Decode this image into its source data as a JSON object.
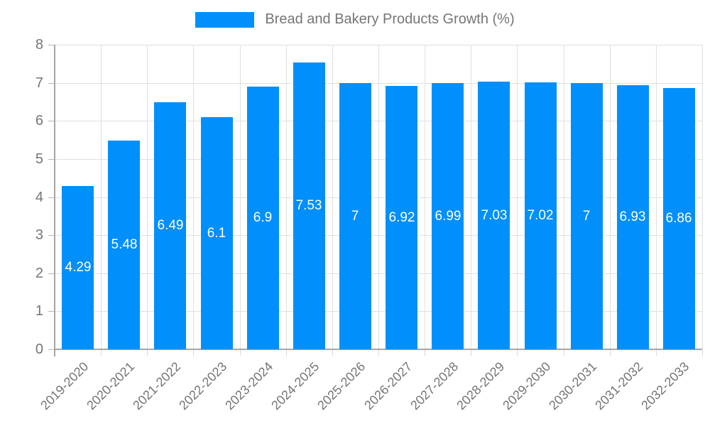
{
  "chart_data": {
    "type": "bar",
    "title": "Bread and Bakery Products Growth (%)",
    "series_name": "Bread and Bakery Products Growth (%)",
    "categories": [
      "2019-2020",
      "2020-2021",
      "2021-2022",
      "2022-2023",
      "2023-2024",
      "2024-2025",
      "2025-2026",
      "2026-2027",
      "2027-2028",
      "2028-2029",
      "2029-2030",
      "2030-2031",
      "2031-2032",
      "2032-2033"
    ],
    "values": [
      4.29,
      5.48,
      6.49,
      6.1,
      6.9,
      7.53,
      7,
      6.92,
      6.99,
      7.03,
      7.02,
      7,
      6.93,
      6.86
    ],
    "value_labels": [
      "4.29",
      "5.48",
      "6.49",
      "6.1",
      "6.9",
      "7.53",
      "7",
      "6.92",
      "6.99",
      "7.03",
      "7.02",
      "7",
      "6.93",
      "6.86"
    ],
    "xlabel": "",
    "ylabel": "",
    "ylim": [
      0,
      8
    ],
    "ytick_step": 1,
    "ytick_labels": [
      "0",
      "1",
      "2",
      "3",
      "4",
      "5",
      "6",
      "7",
      "8"
    ],
    "grid": true,
    "legend_position": "top",
    "colors": {
      "bar": "#008FFB",
      "value_label_text": "#ffffff",
      "axis_text": "#757575",
      "gridline": "#e0e0e0",
      "axis_line": "#a6a6a6"
    }
  }
}
